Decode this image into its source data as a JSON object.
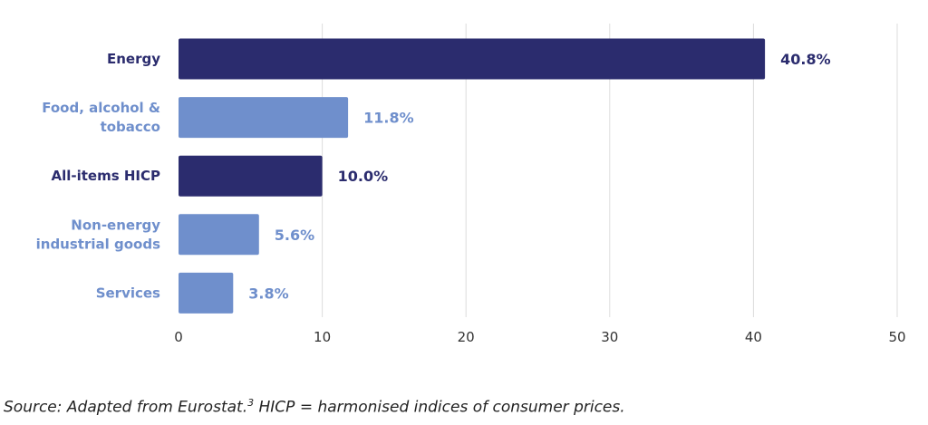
{
  "chart_data": {
    "type": "bar",
    "orientation": "horizontal",
    "categories": [
      [
        "Energy"
      ],
      [
        "Food, alcohol &",
        "tobacco"
      ],
      [
        "All-items HICP"
      ],
      [
        "Non-energy",
        "industrial goods"
      ],
      [
        "Services"
      ]
    ],
    "values": [
      40.8,
      11.8,
      10.0,
      5.6,
      3.8
    ],
    "value_labels": [
      "40.8%",
      "11.8%",
      "10.0%",
      "5.6%",
      "3.8%"
    ],
    "bar_colors": [
      "#2b2c6e",
      "#6f8fcc",
      "#2b2c6e",
      "#6f8fcc",
      "#6f8fcc"
    ],
    "label_colors": [
      "#2b2c6e",
      "#6f8fcc",
      "#2b2c6e",
      "#6f8fcc",
      "#6f8fcc"
    ],
    "xlim": [
      0,
      50
    ],
    "xticks": [
      0,
      10,
      20,
      30,
      40,
      50
    ],
    "grid": true
  },
  "footnote": {
    "text_before": "Source: Adapted from Eurostat.",
    "superscript": "3",
    "text_after": " HICP = harmonised indices of consumer prices."
  }
}
